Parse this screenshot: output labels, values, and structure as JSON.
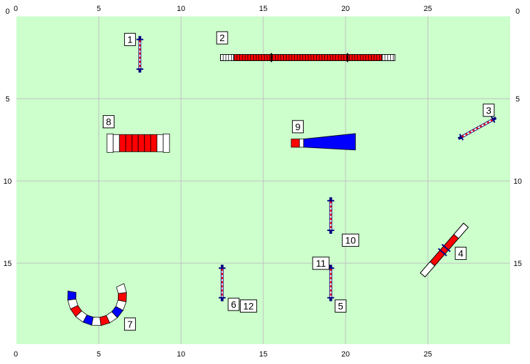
{
  "field": {
    "width_m": 30,
    "height_m": 20,
    "grid_step_m": 5,
    "background_color": "#ccffcc",
    "grid_color": "#bfbfbf"
  },
  "axes": {
    "top_ticks": [
      "0",
      "5",
      "10",
      "15",
      "20",
      "25"
    ],
    "bottom_ticks": [
      "0",
      "5",
      "10",
      "15",
      "20",
      "25"
    ],
    "left_ticks": [
      "0",
      "5",
      "10",
      "15"
    ],
    "right_ticks": [
      "0",
      "5",
      "10",
      "15"
    ]
  },
  "colors": {
    "red": "#ff0000",
    "blue": "#0000ff",
    "navy": "#000080",
    "white": "#ffffff",
    "outline": "#000000"
  },
  "obstacles": [
    {
      "id": "jump-1",
      "icon": "bar-jump-icon",
      "type": "jump",
      "x": 7.5,
      "y": 2.3,
      "angle": 90,
      "length": 1.8
    },
    {
      "id": "dogwalk-2",
      "icon": "dogwalk-icon",
      "type": "dogwalk",
      "x": 17.7,
      "y": 2.5,
      "angle": 0,
      "length": 10.6
    },
    {
      "id": "jump-3",
      "icon": "bar-jump-icon",
      "type": "jump",
      "x": 28.0,
      "y": 6.8,
      "angle": -29,
      "length": 2.2
    },
    {
      "id": "seesaw-4",
      "icon": "seesaw-icon",
      "type": "seesaw",
      "x": 26.0,
      "y": 14.2,
      "angle": -49,
      "length": 4.0
    },
    {
      "id": "jump-5",
      "icon": "bar-jump-icon",
      "type": "jump",
      "x": 19.1,
      "y": 16.2,
      "angle": 90,
      "length": 1.8
    },
    {
      "id": "jump-6",
      "icon": "bar-jump-icon",
      "type": "jump",
      "x": 12.5,
      "y": 16.2,
      "angle": 90,
      "length": 1.8
    },
    {
      "id": "tunnel-7",
      "icon": "curved-tunnel-icon",
      "type": "curved-tunnel",
      "cx": 4.9,
      "cy": 17.0,
      "r": 1.55,
      "thickness": 0.5,
      "sweep_start": 195,
      "sweep_end": 330
    },
    {
      "id": "tunnel-8",
      "icon": "straight-tunnel-icon",
      "type": "straight-tunnel",
      "x": 7.4,
      "y": 7.7,
      "angle": 0,
      "length": 3.8
    },
    {
      "id": "chute-9",
      "icon": "closed-tunnel-icon",
      "type": "chute",
      "x": 16.7,
      "y": 7.7,
      "angle": 0,
      "length": 3.9
    },
    {
      "id": "jump-10",
      "icon": "bar-jump-icon",
      "type": "jump",
      "x": 19.1,
      "y": 12.1,
      "angle": 90,
      "length": 1.8
    }
  ],
  "labels": [
    {
      "id": "label-1",
      "text": "1",
      "x": 6.9,
      "y": 1.4
    },
    {
      "id": "label-2",
      "text": "2",
      "x": 12.5,
      "y": 1.3
    },
    {
      "id": "label-3",
      "text": "3",
      "x": 28.7,
      "y": 5.7
    },
    {
      "id": "label-4",
      "text": "4",
      "x": 27.0,
      "y": 14.4
    },
    {
      "id": "label-5",
      "text": "5",
      "x": 19.7,
      "y": 17.6
    },
    {
      "id": "label-6",
      "text": "6",
      "x": 13.2,
      "y": 17.5
    },
    {
      "id": "label-12",
      "text": "12",
      "x": 14.1,
      "y": 17.6
    },
    {
      "id": "label-7",
      "text": "7",
      "x": 6.9,
      "y": 18.7
    },
    {
      "id": "label-8",
      "text": "8",
      "x": 5.6,
      "y": 6.4
    },
    {
      "id": "label-9",
      "text": "9",
      "x": 17.1,
      "y": 6.7
    },
    {
      "id": "label-10",
      "text": "10",
      "x": 20.3,
      "y": 13.6
    },
    {
      "id": "label-11",
      "text": "11",
      "x": 18.5,
      "y": 15.0
    }
  ]
}
